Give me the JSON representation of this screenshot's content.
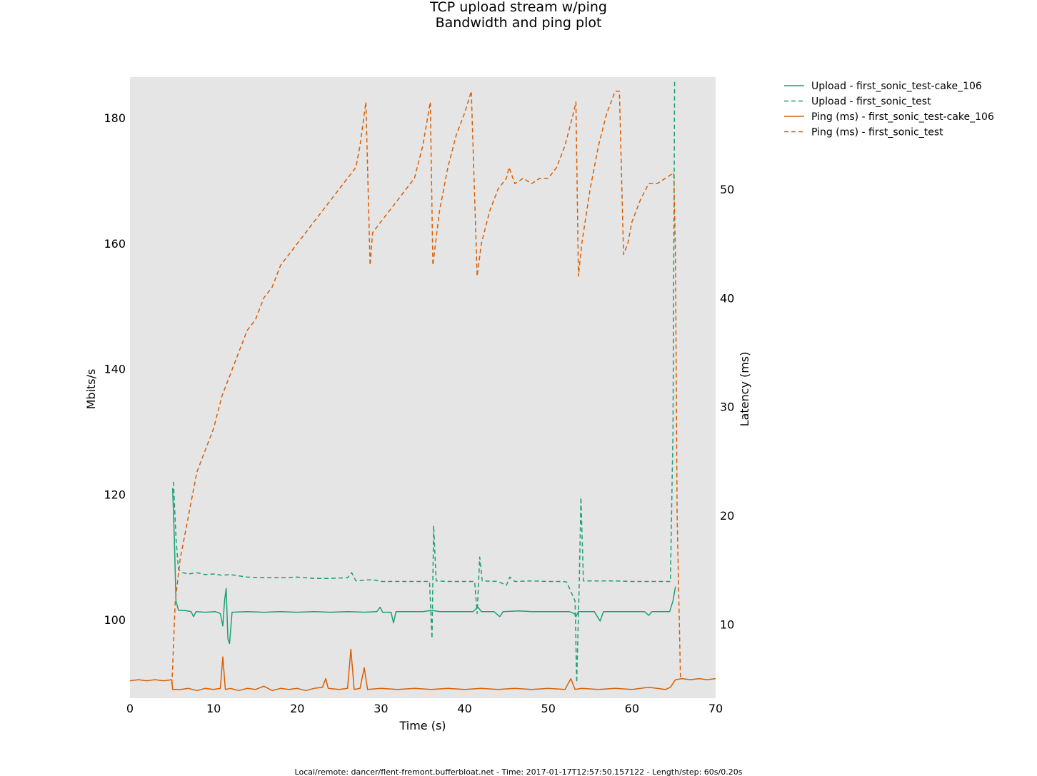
{
  "chart_data": {
    "type": "line",
    "title": "TCP upload stream w/ping",
    "subtitle": "Bandwidth and ping plot",
    "xlabel": "Time (s)",
    "ylabel": "Mbits/s",
    "y2label": "Latency (ms)",
    "xlim": [
      0,
      70
    ],
    "ylim": [
      87.5,
      186.5
    ],
    "y2lim": [
      3.2,
      60.3
    ],
    "x_ticks": [
      0,
      10,
      20,
      30,
      40,
      50,
      60,
      70
    ],
    "y_ticks": [
      100,
      120,
      140,
      160,
      180
    ],
    "y2_ticks": [
      10,
      20,
      30,
      40,
      50
    ],
    "grid": false,
    "legend_position": "outside-right-top",
    "background": "#e5e5e5",
    "footer": "Local/remote: dancer/flent-fremont.bufferbloat.net - Time: 2017-01-17T12:57:50.157122 - Length/step: 60s/0.20s",
    "series": [
      {
        "name": "Upload - first_sonic_test-cake_106",
        "axis": "left",
        "style": "solid",
        "color": "#1b9e77",
        "points": [
          [
            5.0,
            null
          ],
          [
            5.1,
            121
          ],
          [
            5.3,
            113
          ],
          [
            5.5,
            103
          ],
          [
            5.8,
            101.5
          ],
          [
            6.5,
            101.5
          ],
          [
            7.3,
            101.3
          ],
          [
            7.6,
            100.5
          ],
          [
            7.9,
            101.3
          ],
          [
            9,
            101.2
          ],
          [
            10.2,
            101.3
          ],
          [
            10.8,
            101.0
          ],
          [
            11.1,
            99.0
          ],
          [
            11.3,
            103
          ],
          [
            11.5,
            105
          ],
          [
            11.7,
            97
          ],
          [
            11.9,
            96.2
          ],
          [
            12.2,
            101.2
          ],
          [
            14,
            101.3
          ],
          [
            16,
            101.2
          ],
          [
            18,
            101.3
          ],
          [
            20,
            101.2
          ],
          [
            22,
            101.3
          ],
          [
            24,
            101.2
          ],
          [
            26,
            101.3
          ],
          [
            28,
            101.2
          ],
          [
            29.5,
            101.3
          ],
          [
            29.9,
            102.0
          ],
          [
            30.2,
            101.2
          ],
          [
            31.2,
            101.2
          ],
          [
            31.5,
            99.5
          ],
          [
            31.8,
            101.3
          ],
          [
            33,
            101.3
          ],
          [
            35,
            101.3
          ],
          [
            36.1,
            101.5
          ],
          [
            37,
            101.3
          ],
          [
            39,
            101.3
          ],
          [
            41,
            101.3
          ],
          [
            41.6,
            102.0
          ],
          [
            42,
            101.3
          ],
          [
            43.5,
            101.3
          ],
          [
            44.2,
            100.5
          ],
          [
            44.6,
            101.3
          ],
          [
            46.5,
            101.4
          ],
          [
            48,
            101.3
          ],
          [
            50,
            101.3
          ],
          [
            52.5,
            101.3
          ],
          [
            53.1,
            101.0
          ],
          [
            53.3,
            100.5
          ],
          [
            53.6,
            101.3
          ],
          [
            55.5,
            101.3
          ],
          [
            56.2,
            99.8
          ],
          [
            56.6,
            101.3
          ],
          [
            58,
            101.3
          ],
          [
            60,
            101.3
          ],
          [
            61.5,
            101.3
          ],
          [
            62,
            100.7
          ],
          [
            62.4,
            101.3
          ],
          [
            64.5,
            101.3
          ],
          [
            64.9,
            103
          ],
          [
            65.2,
            105.3
          ]
        ]
      },
      {
        "name": "Upload - first_sonic_test",
        "axis": "left",
        "style": "dashed",
        "color": "#1b9e77",
        "points": [
          [
            5.0,
            null
          ],
          [
            5.2,
            122
          ],
          [
            5.5,
            113
          ],
          [
            5.8,
            108
          ],
          [
            6.3,
            107.5
          ],
          [
            7,
            107.3
          ],
          [
            8,
            107.5
          ],
          [
            9,
            107.2
          ],
          [
            10,
            107.3
          ],
          [
            11,
            107.1
          ],
          [
            12,
            107.2
          ],
          [
            14,
            106.8
          ],
          [
            16,
            106.7
          ],
          [
            18,
            106.7
          ],
          [
            20,
            106.8
          ],
          [
            22,
            106.6
          ],
          [
            24,
            106.6
          ],
          [
            26,
            106.7
          ],
          [
            26.5,
            107.5
          ],
          [
            27,
            106.2
          ],
          [
            29,
            106.4
          ],
          [
            30,
            106.1
          ],
          [
            32,
            106.1
          ],
          [
            34,
            106.1
          ],
          [
            35.8,
            106.1
          ],
          [
            36.1,
            97
          ],
          [
            36.3,
            115
          ],
          [
            36.6,
            106.2
          ],
          [
            38,
            106.1
          ],
          [
            40,
            106.1
          ],
          [
            41.2,
            106.1
          ],
          [
            41.5,
            101
          ],
          [
            41.8,
            110
          ],
          [
            42.1,
            106.2
          ],
          [
            44,
            106.1
          ],
          [
            45,
            105.5
          ],
          [
            45.4,
            106.8
          ],
          [
            46,
            106.1
          ],
          [
            48,
            106.2
          ],
          [
            50,
            106.1
          ],
          [
            51.8,
            106.1
          ],
          [
            52.2,
            106.0
          ],
          [
            53.2,
            103
          ],
          [
            53.4,
            90
          ],
          [
            53.7,
            106
          ],
          [
            53.9,
            119.5
          ],
          [
            54.2,
            106.2
          ],
          [
            56,
            106.2
          ],
          [
            58,
            106.2
          ],
          [
            60,
            106.1
          ],
          [
            62,
            106.1
          ],
          [
            64.6,
            106.1
          ],
          [
            64.9,
            130
          ],
          [
            65.1,
            186
          ]
        ]
      },
      {
        "name": "Ping (ms) - first_sonic_test-cake_106",
        "axis": "right",
        "style": "solid",
        "color": "#d95f02",
        "points": [
          [
            0,
            4.8
          ],
          [
            1,
            4.9
          ],
          [
            2,
            4.8
          ],
          [
            3,
            4.9
          ],
          [
            4,
            4.8
          ],
          [
            5,
            4.9
          ],
          [
            5.1,
            4.0
          ],
          [
            6,
            4.0
          ],
          [
            7,
            4.1
          ],
          [
            8,
            3.9
          ],
          [
            9,
            4.1
          ],
          [
            10,
            4.0
          ],
          [
            10.8,
            4.1
          ],
          [
            11.1,
            7.0
          ],
          [
            11.4,
            4.0
          ],
          [
            12,
            4.1
          ],
          [
            13,
            3.9
          ],
          [
            14,
            4.1
          ],
          [
            15,
            4.0
          ],
          [
            16,
            4.3
          ],
          [
            17,
            3.9
          ],
          [
            18,
            4.1
          ],
          [
            19,
            4.0
          ],
          [
            20,
            4.1
          ],
          [
            21,
            3.9
          ],
          [
            22,
            4.1
          ],
          [
            23,
            4.2
          ],
          [
            23.4,
            5.0
          ],
          [
            23.7,
            4.1
          ],
          [
            25,
            4.0
          ],
          [
            26,
            4.1
          ],
          [
            26.4,
            7.7
          ],
          [
            26.8,
            4.0
          ],
          [
            27.5,
            4.1
          ],
          [
            28,
            6.0
          ],
          [
            28.4,
            4.0
          ],
          [
            30,
            4.1
          ],
          [
            32,
            4.0
          ],
          [
            34,
            4.1
          ],
          [
            36,
            4.0
          ],
          [
            38,
            4.1
          ],
          [
            40,
            4.0
          ],
          [
            42,
            4.1
          ],
          [
            44,
            4.0
          ],
          [
            46,
            4.1
          ],
          [
            48,
            4.0
          ],
          [
            50,
            4.1
          ],
          [
            52,
            4.0
          ],
          [
            52.7,
            5.0
          ],
          [
            53.2,
            4.0
          ],
          [
            54,
            4.1
          ],
          [
            56,
            4.0
          ],
          [
            58,
            4.1
          ],
          [
            60,
            4.0
          ],
          [
            62,
            4.2
          ],
          [
            64,
            4.0
          ],
          [
            64.6,
            4.2
          ],
          [
            65.2,
            4.9
          ],
          [
            66,
            5.0
          ],
          [
            67,
            4.9
          ],
          [
            68,
            5.0
          ],
          [
            69,
            4.9
          ],
          [
            70,
            5.0
          ]
        ]
      },
      {
        "name": "Ping (ms) - first_sonic_test",
        "axis": "right",
        "style": "dashed",
        "color": "#d95f02",
        "points": [
          [
            5.0,
            4.5
          ],
          [
            5.1,
            6
          ],
          [
            5.4,
            12
          ],
          [
            6,
            16
          ],
          [
            7,
            20
          ],
          [
            8,
            24
          ],
          [
            9,
            26
          ],
          [
            10,
            28
          ],
          [
            11,
            31
          ],
          [
            12,
            33
          ],
          [
            13,
            35
          ],
          [
            14,
            37
          ],
          [
            15,
            38
          ],
          [
            16,
            40
          ],
          [
            17,
            41
          ],
          [
            18,
            43
          ],
          [
            19,
            44
          ],
          [
            20,
            45
          ],
          [
            21,
            46
          ],
          [
            22,
            47
          ],
          [
            23,
            48
          ],
          [
            24,
            49
          ],
          [
            25,
            50
          ],
          [
            26,
            51
          ],
          [
            27,
            52
          ],
          [
            27.5,
            54
          ],
          [
            28.2,
            58
          ],
          [
            28.7,
            43
          ],
          [
            29,
            46
          ],
          [
            30,
            47
          ],
          [
            31,
            48
          ],
          [
            32,
            49
          ],
          [
            33,
            50
          ],
          [
            34,
            51
          ],
          [
            35,
            54
          ],
          [
            35.9,
            58
          ],
          [
            36.2,
            43
          ],
          [
            37,
            48
          ],
          [
            38,
            52
          ],
          [
            39,
            55
          ],
          [
            40,
            57
          ],
          [
            40.8,
            59
          ],
          [
            41.5,
            42
          ],
          [
            42,
            45
          ],
          [
            43,
            48
          ],
          [
            44,
            50
          ],
          [
            45,
            51
          ],
          [
            45.3,
            52
          ],
          [
            46,
            50.5
          ],
          [
            47,
            51
          ],
          [
            48,
            50.5
          ],
          [
            49,
            51
          ],
          [
            50,
            51
          ],
          [
            51,
            52
          ],
          [
            52,
            54
          ],
          [
            53,
            57
          ],
          [
            53.3,
            58
          ],
          [
            53.6,
            42
          ],
          [
            54,
            45
          ],
          [
            55,
            50
          ],
          [
            56,
            54
          ],
          [
            57,
            57
          ],
          [
            58,
            59
          ],
          [
            58.5,
            59
          ],
          [
            59,
            44
          ],
          [
            59.5,
            45
          ],
          [
            60,
            47
          ],
          [
            61,
            49
          ],
          [
            62,
            50.5
          ],
          [
            63,
            50.5
          ],
          [
            64,
            51
          ],
          [
            65,
            51.5
          ],
          [
            65.2,
            44
          ],
          [
            65.4,
            20
          ],
          [
            65.8,
            5
          ]
        ]
      }
    ]
  }
}
